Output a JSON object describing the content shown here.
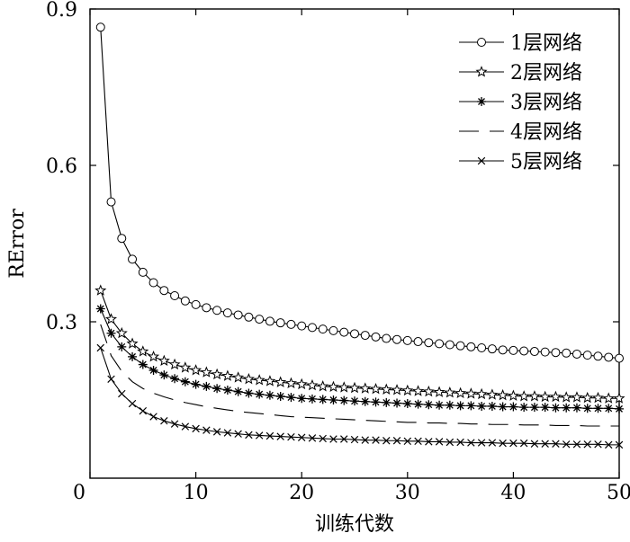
{
  "chart_data": {
    "type": "line",
    "title": "",
    "xlabel": "训练代数",
    "ylabel": "RError",
    "xlim": [
      0,
      50
    ],
    "ylim": [
      0,
      0.9
    ],
    "xticks": [
      0,
      10,
      20,
      30,
      40,
      50
    ],
    "yticks": [
      0.3,
      0.6,
      0.9
    ],
    "ytick_labels": [
      "0.3",
      "0.6",
      "0.9"
    ],
    "xtick_labels": [
      "0",
      "10",
      "20",
      "30",
      "40",
      "50"
    ],
    "origin_label": "0",
    "grid": false,
    "legend_position": "top-right",
    "x": [
      1,
      2,
      3,
      4,
      5,
      6,
      7,
      8,
      9,
      10,
      11,
      12,
      13,
      14,
      15,
      16,
      17,
      18,
      19,
      20,
      21,
      22,
      23,
      24,
      25,
      26,
      27,
      28,
      29,
      30,
      31,
      32,
      33,
      34,
      35,
      36,
      37,
      38,
      39,
      40,
      41,
      42,
      43,
      44,
      45,
      46,
      47,
      48,
      49,
      50
    ],
    "series": [
      {
        "name": "1层网络",
        "marker": "circle",
        "dash": "",
        "values": [
          0.865,
          0.53,
          0.46,
          0.42,
          0.395,
          0.375,
          0.36,
          0.35,
          0.34,
          0.333,
          0.327,
          0.322,
          0.317,
          0.313,
          0.309,
          0.305,
          0.301,
          0.298,
          0.295,
          0.292,
          0.289,
          0.286,
          0.283,
          0.28,
          0.277,
          0.274,
          0.271,
          0.268,
          0.266,
          0.264,
          0.262,
          0.26,
          0.258,
          0.256,
          0.254,
          0.252,
          0.25,
          0.248,
          0.246,
          0.245,
          0.244,
          0.243,
          0.242,
          0.241,
          0.24,
          0.238,
          0.236,
          0.234,
          0.232,
          0.23
        ]
      },
      {
        "name": "2层网络",
        "marker": "star",
        "dash": "",
        "values": [
          0.36,
          0.305,
          0.278,
          0.258,
          0.243,
          0.233,
          0.225,
          0.218,
          0.212,
          0.207,
          0.203,
          0.199,
          0.196,
          0.193,
          0.19,
          0.188,
          0.186,
          0.184,
          0.182,
          0.18,
          0.178,
          0.176,
          0.175,
          0.174,
          0.173,
          0.172,
          0.171,
          0.17,
          0.169,
          0.168,
          0.167,
          0.166,
          0.165,
          0.164,
          0.163,
          0.162,
          0.161,
          0.16,
          0.159,
          0.158,
          0.157,
          0.157,
          0.156,
          0.156,
          0.155,
          0.155,
          0.154,
          0.154,
          0.153,
          0.153
        ]
      },
      {
        "name": "3层网络",
        "marker": "asterisk",
        "dash": "",
        "values": [
          0.325,
          0.278,
          0.252,
          0.233,
          0.218,
          0.207,
          0.198,
          0.191,
          0.185,
          0.18,
          0.176,
          0.172,
          0.169,
          0.166,
          0.163,
          0.161,
          0.159,
          0.157,
          0.155,
          0.153,
          0.152,
          0.151,
          0.15,
          0.149,
          0.148,
          0.147,
          0.146,
          0.145,
          0.144,
          0.143,
          0.142,
          0.141,
          0.14,
          0.14,
          0.139,
          0.139,
          0.138,
          0.138,
          0.137,
          0.137,
          0.136,
          0.136,
          0.136,
          0.135,
          0.135,
          0.135,
          0.134,
          0.134,
          0.134,
          0.133
        ]
      },
      {
        "name": "4层网络",
        "marker": "",
        "dash": "22,12",
        "values": [
          0.295,
          0.235,
          0.205,
          0.185,
          0.172,
          0.163,
          0.156,
          0.15,
          0.145,
          0.141,
          0.137,
          0.134,
          0.131,
          0.128,
          0.126,
          0.124,
          0.122,
          0.12,
          0.118,
          0.117,
          0.116,
          0.115,
          0.114,
          0.113,
          0.112,
          0.111,
          0.11,
          0.109,
          0.108,
          0.107,
          0.107,
          0.106,
          0.106,
          0.105,
          0.105,
          0.104,
          0.104,
          0.103,
          0.103,
          0.103,
          0.102,
          0.102,
          0.102,
          0.101,
          0.101,
          0.101,
          0.1,
          0.1,
          0.1,
          0.1
        ]
      },
      {
        "name": "5层网络",
        "marker": "x",
        "dash": "",
        "values": [
          0.25,
          0.19,
          0.162,
          0.143,
          0.129,
          0.118,
          0.11,
          0.104,
          0.099,
          0.095,
          0.092,
          0.089,
          0.087,
          0.085,
          0.083,
          0.082,
          0.081,
          0.08,
          0.079,
          0.078,
          0.077,
          0.076,
          0.075,
          0.075,
          0.074,
          0.073,
          0.073,
          0.072,
          0.072,
          0.071,
          0.071,
          0.07,
          0.07,
          0.069,
          0.069,
          0.068,
          0.068,
          0.068,
          0.067,
          0.067,
          0.067,
          0.066,
          0.066,
          0.066,
          0.065,
          0.065,
          0.065,
          0.065,
          0.064,
          0.064
        ]
      }
    ]
  }
}
